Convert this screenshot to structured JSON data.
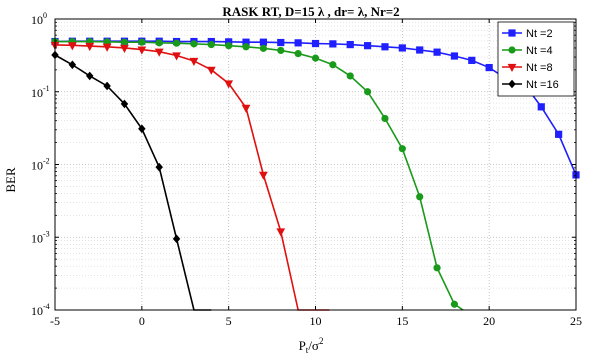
{
  "chart_data": {
    "type": "line",
    "title": "RASK RT, D=15 λ , dr= λ, Nr=2",
    "xlabel": {
      "base": "P",
      "sub": "t",
      "slash": "/σ",
      "sup": "2"
    },
    "ylabel": "BER",
    "xlim": [
      -5,
      25
    ],
    "ylim": [
      0.0001,
      1
    ],
    "yscale": "log",
    "grid": "dotted",
    "legend_position": "top-right",
    "x_ticks": [
      "-5",
      "0",
      "5",
      "10",
      "15",
      "20",
      "25"
    ],
    "y_ticks": [
      {
        "base": "10",
        "exp": "0"
      },
      {
        "base": "10",
        "exp": "-1"
      },
      {
        "base": "10",
        "exp": "-2"
      },
      {
        "base": "10",
        "exp": "-3"
      },
      {
        "base": "10",
        "exp": "-4"
      }
    ],
    "series": [
      {
        "name": "Nt =2",
        "color": "#1f1fff",
        "marker": "square",
        "x": [
          -5,
          -4,
          -3,
          -2,
          -1,
          0,
          1,
          2,
          3,
          4,
          5,
          6,
          7,
          8,
          9,
          10,
          11,
          12,
          13,
          14,
          15,
          16,
          17,
          18,
          19,
          20,
          21,
          22,
          23,
          24,
          25
        ],
        "y": [
          0.49,
          0.495,
          0.495,
          0.495,
          0.495,
          0.495,
          0.495,
          0.49,
          0.49,
          0.49,
          0.485,
          0.48,
          0.48,
          0.475,
          0.47,
          0.46,
          0.455,
          0.445,
          0.43,
          0.415,
          0.4,
          0.375,
          0.35,
          0.31,
          0.27,
          0.215,
          0.15,
          0.13,
          0.062,
          0.026,
          0.0072
        ]
      },
      {
        "name": "Nt =4",
        "color": "#1a9a1a",
        "marker": "circle",
        "x": [
          -5,
          -4,
          -3,
          -2,
          -1,
          0,
          1,
          2,
          3,
          4,
          5,
          6,
          7,
          8,
          9,
          10,
          11,
          12,
          13,
          14,
          15,
          16,
          17,
          18,
          18.5
        ],
        "y": [
          0.49,
          0.49,
          0.49,
          0.485,
          0.48,
          0.48,
          0.47,
          0.465,
          0.455,
          0.445,
          0.43,
          0.415,
          0.395,
          0.37,
          0.335,
          0.29,
          0.235,
          0.165,
          0.1,
          0.043,
          0.0165,
          0.0036,
          0.00038,
          0.00012,
          0.0001
        ]
      },
      {
        "name": "Nt =8",
        "color": "#e01010",
        "marker": "triangle-down",
        "x": [
          -5,
          -4,
          -3,
          -2,
          -1,
          0,
          1,
          2,
          3,
          4,
          5,
          6,
          7,
          8,
          9,
          10,
          10.8
        ],
        "y": [
          0.44,
          0.435,
          0.425,
          0.415,
          0.4,
          0.38,
          0.355,
          0.315,
          0.265,
          0.2,
          0.13,
          0.06,
          0.0072,
          0.0012,
          0.0001,
          0.0001,
          0.0001
        ]
      },
      {
        "name": "Nt =16",
        "color": "#000000",
        "marker": "diamond",
        "x": [
          -5,
          -4,
          -3,
          -2,
          -1,
          0,
          1,
          2,
          3,
          4
        ],
        "y": [
          0.32,
          0.235,
          0.165,
          0.12,
          0.068,
          0.031,
          0.0092,
          0.00095,
          0.0001,
          0.0001
        ]
      }
    ]
  }
}
